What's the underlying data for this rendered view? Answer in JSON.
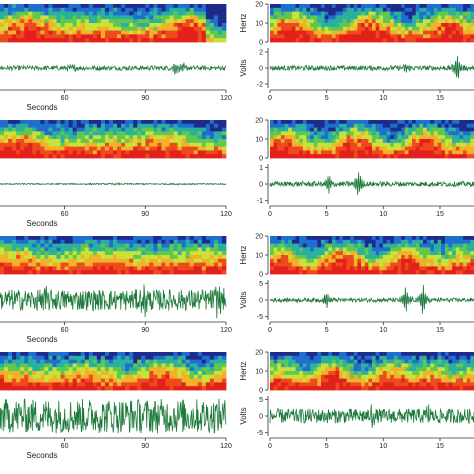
{
  "chart_data": {
    "type": "spectrogram-waveform-grid",
    "rows": 4,
    "columns": [
      {
        "side": "left",
        "xlabel": "Seconds",
        "x_ticks": [
          "60",
          "90",
          "120"
        ],
        "xlim": [
          36,
          120
        ]
      },
      {
        "side": "right",
        "x_ticks": [
          "0",
          "5",
          "10",
          "15"
        ],
        "xlim": [
          0,
          18
        ],
        "spectrogram_ylabel": "Hertz",
        "spectrogram_y_ticks": [
          "0",
          "10",
          "20"
        ],
        "spectrogram_ylim": [
          0,
          20
        ],
        "waveform_ylabel": "Volts"
      }
    ],
    "panels": [
      {
        "row": 0,
        "col": 0,
        "show_xlabel": true,
        "amplitude": 0.35,
        "bursts": [
          [
            63,
            0.5
          ],
          [
            101,
            0.9
          ],
          [
            104,
            0.7
          ]
        ]
      },
      {
        "row": 0,
        "col": 1,
        "show_ylabels": true,
        "volt_ticks": [
          "2",
          "0",
          "-2"
        ],
        "vlim": [
          -2.5,
          2.5
        ],
        "amplitude": 0.3,
        "bursts": [
          [
            12,
            0.5
          ],
          [
            16.5,
            2.0
          ]
        ],
        "x_ticks_shown": true
      },
      {
        "row": 1,
        "col": 0,
        "show_xlabel": true,
        "amplitude": 0.1,
        "bursts": [
          [
            79,
            0.25
          ]
        ]
      },
      {
        "row": 1,
        "col": 1,
        "show_ylabels": false,
        "volt_ticks": [
          "1",
          "0",
          "-1"
        ],
        "vlim": [
          -1.2,
          1.2
        ],
        "amplitude": 0.15,
        "bursts": [
          [
            5.2,
            0.6
          ],
          [
            7.8,
            0.9
          ]
        ],
        "x_ticks_shown": true
      },
      {
        "row": 2,
        "col": 0,
        "show_xlabel": true,
        "amplitude": 1.6,
        "bursts": [
          [
            52,
            2.2
          ],
          [
            90,
            2.3
          ],
          [
            117,
            1.8
          ]
        ]
      },
      {
        "row": 2,
        "col": 1,
        "show_ylabels": true,
        "volt_ticks": [
          "5",
          "0",
          "-5"
        ],
        "vlim": [
          -6,
          6
        ],
        "amplitude": 0.6,
        "bursts": [
          [
            5,
            2.5
          ],
          [
            12,
            4.5
          ],
          [
            13.5,
            5
          ]
        ],
        "x_ticks_shown": true
      },
      {
        "row": 3,
        "col": 0,
        "show_xlabel": true,
        "amplitude": 2.6,
        "bursts": []
      },
      {
        "row": 3,
        "col": 1,
        "show_ylabels": true,
        "volt_ticks": [
          "5",
          "0",
          "-5"
        ],
        "vlim": [
          -6,
          6
        ],
        "amplitude": 2.2,
        "bursts": [
          [
            9,
            3
          ],
          [
            14,
            3.5
          ]
        ],
        "x_ticks_shown": true
      }
    ],
    "colors": {
      "waveform": "#1f7a3c",
      "spectrogram_scale": [
        "#1e2a8c",
        "#1f6fd0",
        "#2bb0a0",
        "#5ec850",
        "#c9e23a",
        "#f3b12a",
        "#ef4a1e",
        "#e3211c"
      ]
    }
  }
}
